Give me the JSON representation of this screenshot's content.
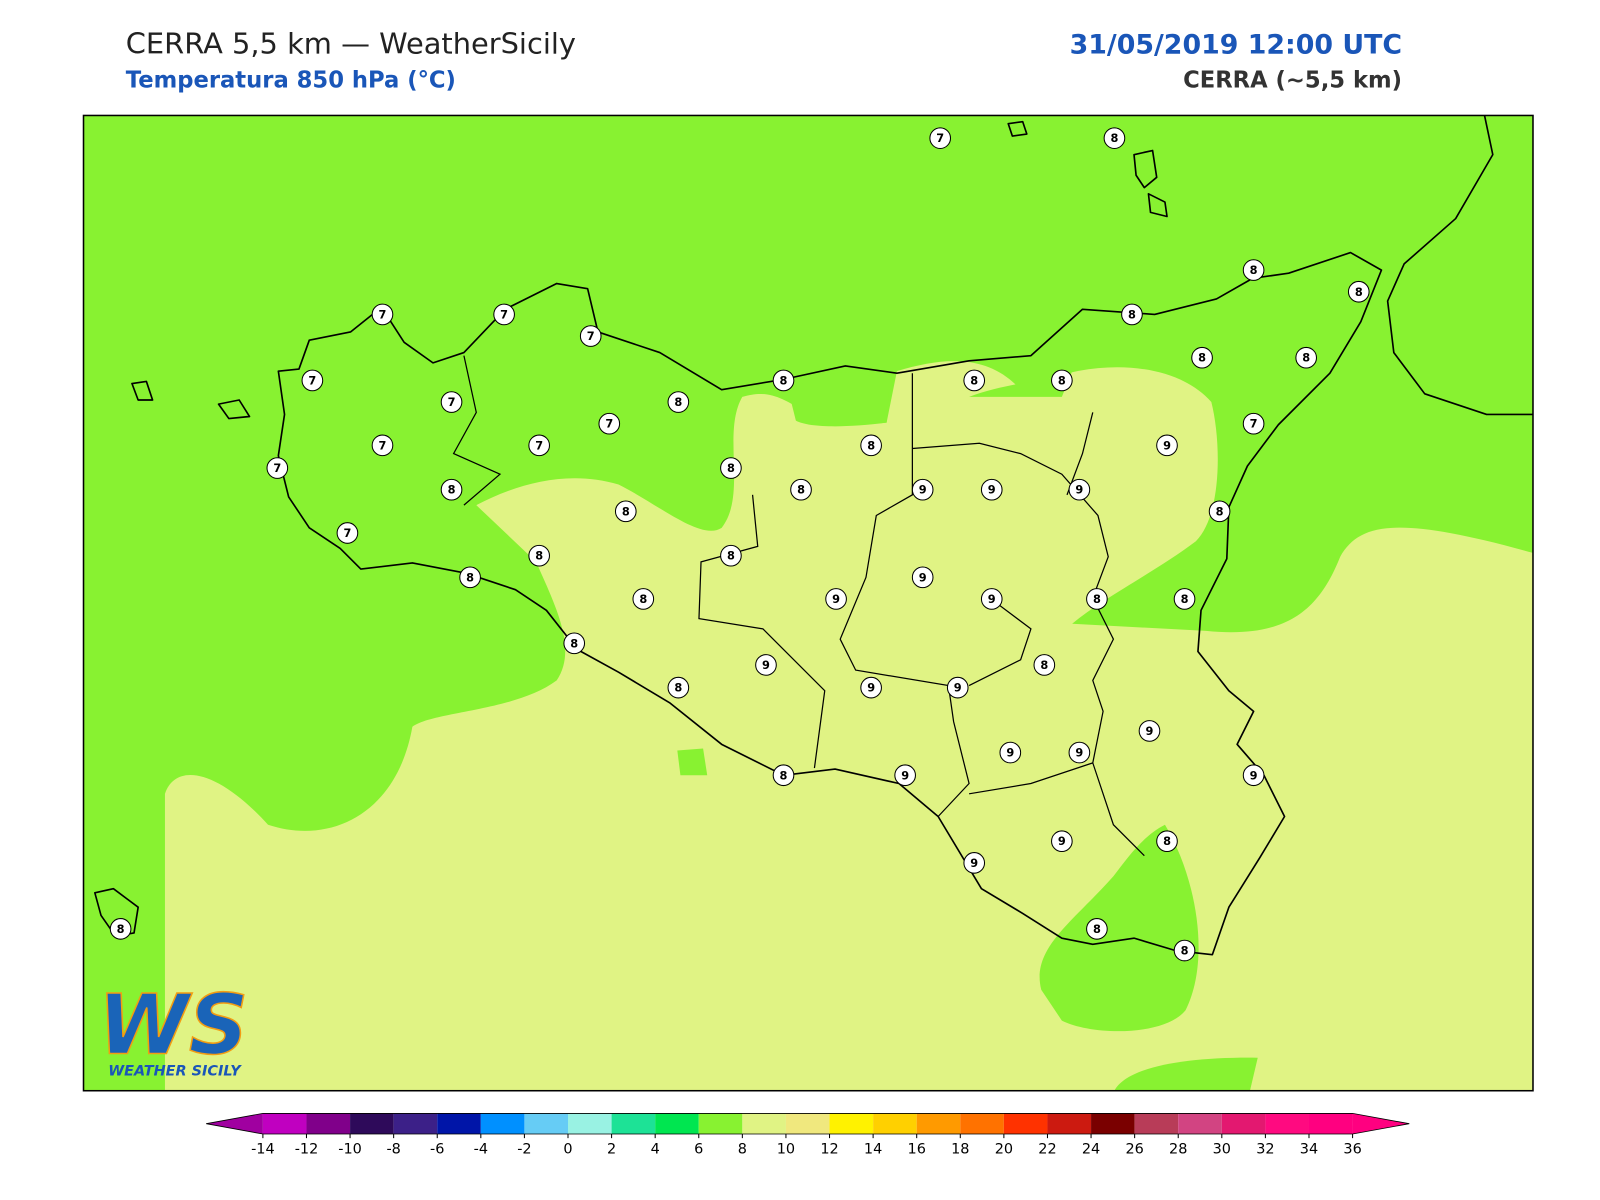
{
  "header": {
    "title": "CERRA 5,5 km — WeatherSicily",
    "subtitle": "Temperatura 850 hPa (°C)",
    "datetime": "31/05/2019 12:00 UTC",
    "model": "CERRA (~5,5 km)"
  },
  "map": {
    "stations": [
      7,
      8,
      8,
      8,
      8,
      8,
      8,
      7,
      7,
      7,
      7,
      8,
      8,
      8,
      7,
      8,
      7,
      7,
      7,
      7,
      8,
      9,
      7,
      8,
      8,
      8,
      9,
      9,
      9,
      8,
      8,
      7,
      8,
      8,
      8,
      9,
      8,
      9,
      9,
      8,
      8,
      8,
      8,
      9,
      8,
      9,
      9,
      9,
      9,
      9,
      8,
      9,
      9,
      9,
      8,
      9,
      8,
      8,
      8
    ]
  },
  "colorbar": {
    "ticks": [
      -14,
      -12,
      -10,
      -8,
      -6,
      -4,
      -2,
      0,
      2,
      4,
      6,
      8,
      10,
      12,
      14,
      16,
      18,
      20,
      22,
      24,
      26,
      28,
      30,
      32,
      34,
      36
    ],
    "colors": [
      "#c000c0",
      "#80008a",
      "#2e0a5a",
      "#3c2088",
      "#0015a8",
      "#0090ff",
      "#66ccf5",
      "#99f2e3",
      "#1de296",
      "#00e650",
      "#88f231",
      "#e0f384",
      "#f0e87e",
      "#fff200",
      "#ffd000",
      "#ff9a00",
      "#ff7200",
      "#ff3200",
      "#cc1a10",
      "#7a0000",
      "#b83c58",
      "#d24482",
      "#e31870",
      "#ff0a80",
      "#ff0080"
    ],
    "under": "#a000a0",
    "over": "#ff0080"
  },
  "logo": {
    "mark": "WS",
    "text": "WEATHER SICILY"
  }
}
